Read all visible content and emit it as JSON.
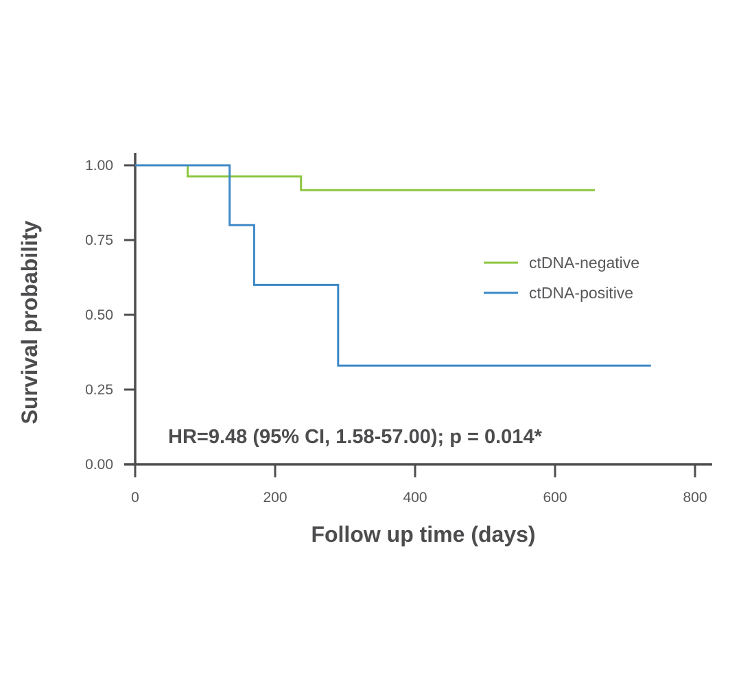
{
  "chart_data": {
    "type": "line",
    "subtype": "kaplan-meier-step",
    "xlabel": "Follow up time (days)",
    "ylabel": "Survival probability",
    "xlim": [
      0,
      800
    ],
    "ylim": [
      0,
      1
    ],
    "x_ticks": [
      {
        "value": 0,
        "label": "0"
      },
      {
        "value": 200,
        "label": "200"
      },
      {
        "value": 400,
        "label": "400"
      },
      {
        "value": 600,
        "label": "600"
      },
      {
        "value": 800,
        "label": "800"
      }
    ],
    "y_ticks": [
      {
        "value": 0,
        "label": "0.00"
      },
      {
        "value": 0.25,
        "label": "0.25"
      },
      {
        "value": 0.5,
        "label": "0.50"
      },
      {
        "value": 0.75,
        "label": "0.75"
      },
      {
        "value": 1,
        "label": "1.00"
      }
    ],
    "grid": false,
    "legend_position": "right",
    "series": [
      {
        "name": "ctDNA-negative",
        "color": "#8cc63f",
        "x": [
          0,
          75,
          237,
          657
        ],
        "y": [
          1.0,
          0.963,
          0.917,
          0.917
        ]
      },
      {
        "name": "ctDNA-positive",
        "color": "#3d88c6",
        "x": [
          0,
          135,
          170,
          290,
          737
        ],
        "y": [
          1.0,
          0.8,
          0.6,
          0.33,
          0.33
        ]
      }
    ],
    "annotation": "HR=9.48 (95% CI, 1.58-57.00); p = 0.014*",
    "axis_color": "#4d4d4f"
  }
}
